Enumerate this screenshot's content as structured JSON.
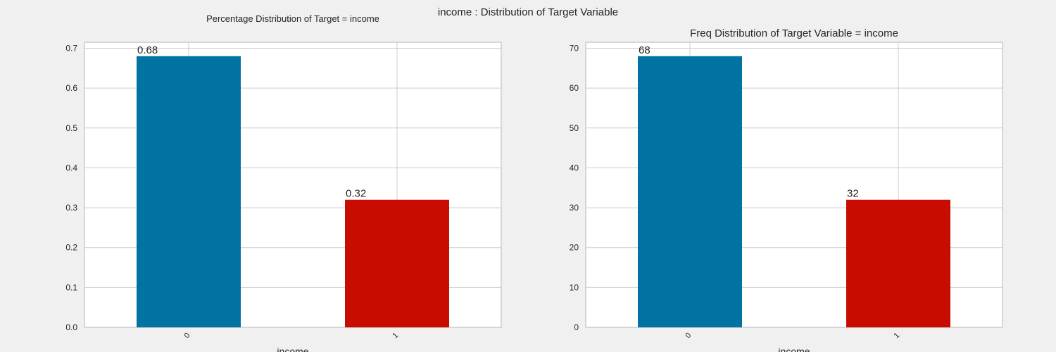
{
  "figure": {
    "suptitle": "income : Distribution of Target Variable"
  },
  "chart_data": [
    {
      "type": "bar",
      "title": "Percentage Distribution of Target = income",
      "xlabel": "income",
      "ylabel": "",
      "categories": [
        "0",
        "1"
      ],
      "values": [
        0.68,
        0.32
      ],
      "data_labels": [
        "0.68",
        "0.32"
      ],
      "colors": [
        "#0173a3",
        "#c90c00"
      ],
      "ylim": [
        0,
        0.715
      ],
      "yticks": [
        0.0,
        0.1,
        0.2,
        0.3,
        0.4,
        0.5,
        0.6,
        0.7
      ],
      "ytick_labels": [
        "0.0",
        "0.1",
        "0.2",
        "0.3",
        "0.4",
        "0.5",
        "0.6",
        "0.7"
      ],
      "grid": true,
      "legend": "none"
    },
    {
      "type": "bar",
      "title": "Freq Distribution of Target Variable = income",
      "xlabel": "income",
      "ylabel": "",
      "categories": [
        "0",
        "1"
      ],
      "values": [
        68,
        32
      ],
      "data_labels": [
        "68",
        "32"
      ],
      "colors": [
        "#0173a3",
        "#c90c00"
      ],
      "ylim": [
        0,
        71.5
      ],
      "yticks": [
        0,
        10,
        20,
        30,
        40,
        50,
        60,
        70
      ],
      "ytick_labels": [
        "0",
        "10",
        "20",
        "30",
        "40",
        "50",
        "60",
        "70"
      ],
      "grid": true,
      "legend": "none"
    }
  ]
}
